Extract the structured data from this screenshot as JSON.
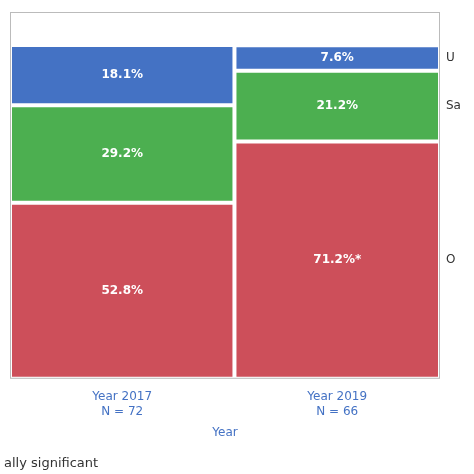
{
  "chart_data": {
    "type": "mosaic",
    "categories": [
      "Year 2017\nN = 72",
      "Year 2019\nN = 66"
    ],
    "widths": [
      0.522,
      0.478
    ],
    "series": [
      {
        "name": "O",
        "color": "#cd4f5a",
        "values": [
          52.8,
          71.2
        ],
        "value_labels": [
          "52.8%",
          "71.2%*"
        ]
      },
      {
        "name": "Sa",
        "color": "#4caf50",
        "values": [
          29.2,
          21.2
        ],
        "value_labels": [
          "29.2%",
          "21.2%"
        ]
      },
      {
        "name": "U",
        "color": "#4472c4",
        "values": [
          18.1,
          7.6
        ],
        "value_labels": [
          "18.1%",
          "7.6%"
        ]
      }
    ],
    "xlabel": "Year",
    "annotations": [
      "ally significant"
    ],
    "ylim": [
      0,
      110
    ],
    "stacked": true,
    "data_labels": true,
    "tick_labels": "x",
    "grid": false
  }
}
